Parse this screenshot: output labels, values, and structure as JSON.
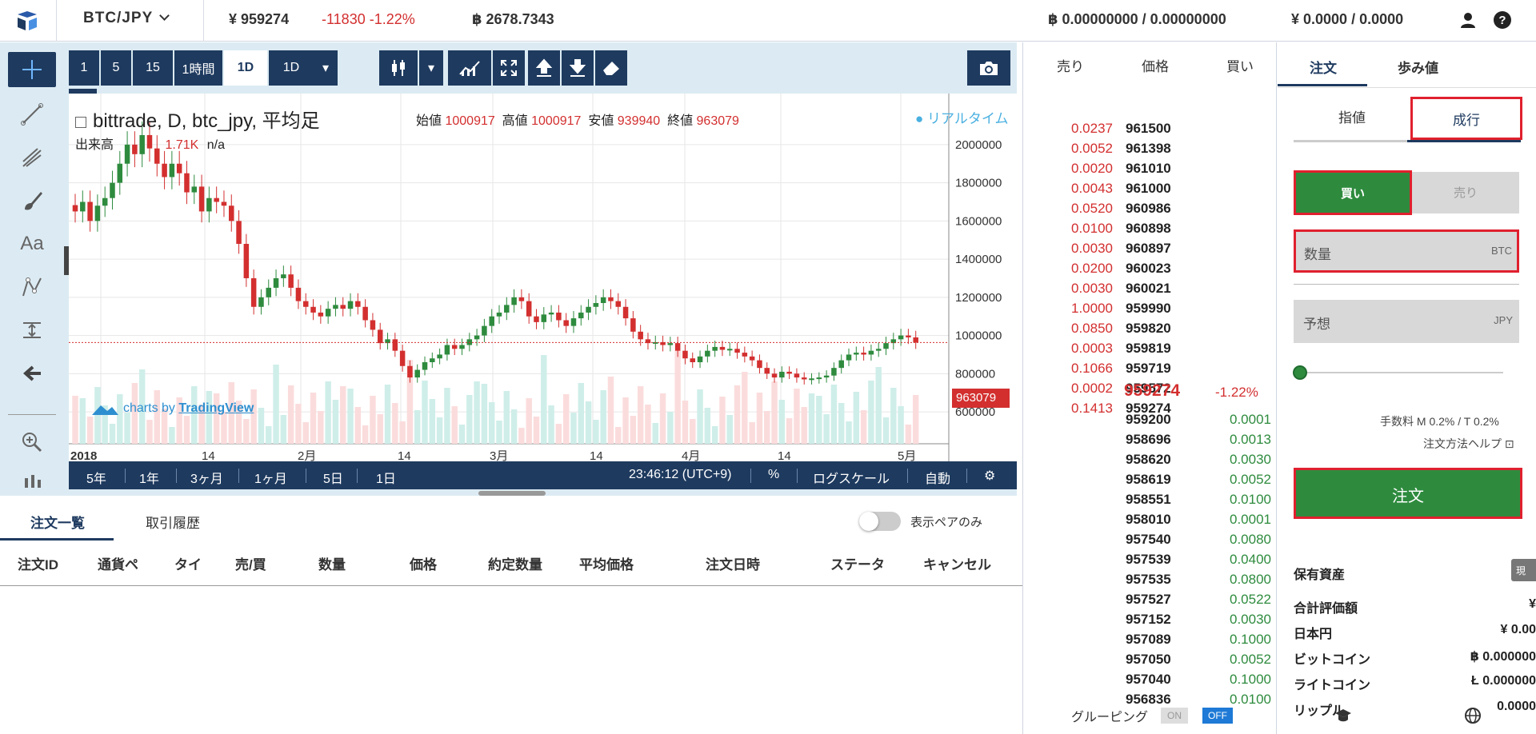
{
  "header": {
    "pair": "BTC/JPY",
    "price": "¥ 959274",
    "change": "-11830 -1.22%",
    "volume": "฿ 2678.7343",
    "btc_balance": "฿ 0.00000000 / 0.00000000",
    "jpy_balance": "¥ 0.0000 / 0.0000"
  },
  "chart_toolbar": {
    "intervals": [
      "1",
      "5",
      "15",
      "1時間",
      "1D",
      "1D"
    ]
  },
  "chart_legend": {
    "symbol": "bittrade, D, btc_jpy, 平均足",
    "open_label": "始値",
    "open": "1000917",
    "high_label": "高値",
    "high": "1000917",
    "low_label": "安値",
    "low": "939940",
    "close_label": "終値",
    "close": "963079",
    "realtime": "● リアルタイム",
    "volume_label": "出来高",
    "volume_value": "1.71K",
    "volume_na": "n/a",
    "watermark": "charts by",
    "watermark_link": "TradingView",
    "current_price_tag": "963079"
  },
  "chart_data": {
    "type": "candlestick",
    "yticks": [
      "2000000",
      "1800000",
      "1600000",
      "1400000",
      "1200000",
      "1000000",
      "800000",
      "600000"
    ],
    "xticks": [
      "2018",
      "14",
      "2月",
      "14",
      "3月",
      "14",
      "4月",
      "14",
      "5月"
    ],
    "ylim": [
      550000,
      2100000
    ],
    "last": 963079,
    "closes": [
      1650000,
      1700000,
      1600000,
      1680000,
      1720000,
      1800000,
      1900000,
      2000000,
      1950000,
      2050000,
      1980000,
      1900000,
      1830000,
      1900000,
      1850000,
      1750000,
      1780000,
      1650000,
      1720000,
      1700000,
      1680000,
      1600000,
      1480000,
      1300000,
      1150000,
      1200000,
      1250000,
      1300000,
      1320000,
      1250000,
      1180000,
      1150000,
      1120000,
      1100000,
      1140000,
      1160000,
      1140000,
      1180000,
      1150000,
      1080000,
      1030000,
      960000,
      980000,
      920000,
      840000,
      780000,
      820000,
      860000,
      880000,
      900000,
      950000,
      930000,
      950000,
      980000,
      1000000,
      1050000,
      1100000,
      1120000,
      1160000,
      1200000,
      1180000,
      1100000,
      1070000,
      1110000,
      1120000,
      1080000,
      1050000,
      1090000,
      1120000,
      1150000,
      1170000,
      1200000,
      1180000,
      1150000,
      1090000,
      1020000,
      980000,
      960000,
      965000,
      950000,
      960000,
      920000,
      880000,
      860000,
      890000,
      920000,
      940000,
      925000,
      930000,
      910000,
      890000,
      870000,
      830000,
      800000,
      780000,
      810000,
      800000,
      780000,
      770000,
      775000,
      780000,
      790000,
      830000,
      870000,
      900000,
      910000,
      900000,
      920000,
      930000,
      960000,
      980000,
      1000000,
      990000,
      963079
    ]
  },
  "chart_bottom": {
    "ranges": [
      "5年",
      "1年",
      "3ヶ月",
      "1ヶ月",
      "5日",
      "1日"
    ],
    "time": "23:46:12 (UTC+9)",
    "pct": "%",
    "log": "ログスケール",
    "auto": "自動"
  },
  "orders": {
    "tabs": [
      "注文一覧",
      "取引履歴"
    ],
    "toggle_label": "表示ペアのみ",
    "columns": [
      "注文ID",
      "通貨ペ",
      "タイ",
      "売/買",
      "数量",
      "価格",
      "約定数量",
      "平均価格",
      "注文日時",
      "ステータ",
      "キャンセル"
    ]
  },
  "book": {
    "headers": [
      "売り",
      "価格",
      "買い"
    ],
    "asks": [
      [
        "0.0237",
        "961500"
      ],
      [
        "0.0052",
        "961398"
      ],
      [
        "0.0020",
        "961010"
      ],
      [
        "0.0043",
        "961000"
      ],
      [
        "0.0520",
        "960986"
      ],
      [
        "0.0100",
        "960898"
      ],
      [
        "0.0030",
        "960897"
      ],
      [
        "0.0200",
        "960023"
      ],
      [
        "0.0030",
        "960021"
      ],
      [
        "1.0000",
        "959990"
      ],
      [
        "0.0850",
        "959820"
      ],
      [
        "0.0003",
        "959819"
      ],
      [
        "0.1066",
        "959719"
      ],
      [
        "0.0002",
        "959572"
      ],
      [
        "0.1413",
        "959274"
      ]
    ],
    "mid_price": "959274",
    "mid_change": "-1.22%",
    "bids": [
      [
        "959200",
        "0.0001"
      ],
      [
        "958696",
        "0.0013"
      ],
      [
        "958620",
        "0.0030"
      ],
      [
        "958619",
        "0.0052"
      ],
      [
        "958551",
        "0.0100"
      ],
      [
        "958010",
        "0.0001"
      ],
      [
        "957540",
        "0.0080"
      ],
      [
        "957539",
        "0.0400"
      ],
      [
        "957535",
        "0.0800"
      ],
      [
        "957527",
        "0.0522"
      ],
      [
        "957152",
        "0.0030"
      ],
      [
        "957089",
        "0.1000"
      ],
      [
        "957050",
        "0.0052"
      ],
      [
        "957040",
        "0.1000"
      ],
      [
        "956836",
        "0.0100"
      ]
    ],
    "grouping_label": "グルーピング",
    "on": "ON",
    "off": "OFF"
  },
  "order_panel": {
    "tabs": [
      "注文",
      "歩み値"
    ],
    "type_limit": "指値",
    "type_market": "成行",
    "buy": "買い",
    "sell": "売り",
    "qty_label": "数量",
    "qty_unit": "BTC",
    "est_label": "予想",
    "est_unit": "JPY",
    "fee": "手数料 M 0.2% / T 0.2%",
    "help": "注文方法ヘルプ ⊡",
    "submit": "注文"
  },
  "assets": {
    "title": "保有資産",
    "badge": "現",
    "rows": [
      [
        "合計評価額",
        "¥"
      ],
      [
        "日本円",
        "¥ 0.00"
      ],
      [
        "ビットコイン",
        "฿ 0.000000"
      ],
      [
        "ライトコイン",
        "Ł 0.000000"
      ],
      [
        "リップル",
        "0.0000"
      ]
    ]
  },
  "colors": {
    "navy": "#1e3a5f",
    "up": "#2e8b3e",
    "down": "#d32f2f",
    "highlight": "#e0202e"
  }
}
